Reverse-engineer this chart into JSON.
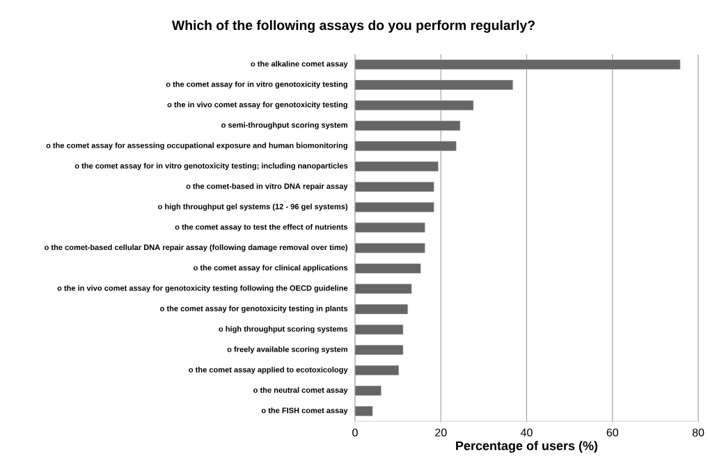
{
  "chart_data": {
    "type": "bar",
    "orientation": "horizontal",
    "title": "Which of the following assays do you perform regularly?",
    "xlabel": "Percentage of users (%)",
    "categories": [
      "o  the alkaline comet assay",
      "o  the comet assay for in vitro genotoxicity testing",
      "o  the in vivo comet assay for genotoxicity testing",
      "o  semi-throughput scoring system",
      "o  the comet assay for assessing occupational exposure and human biomonitoring",
      "o   the comet assay for in vitro genotoxicity testing; including nanoparticles",
      "o  the comet-based in vitro DNA repair assay",
      "o  high throughput gel systems (12 - 96 gel systems)",
      "o  the comet assay to test the effect of nutrients",
      "o  the comet-based cellular DNA repair assay (following damage removal over time)",
      "o  the comet assay for clinical applications",
      "o  the in vivo comet assay for genotoxicity testing following the OECD guideline",
      "o  the comet assay for genotoxicity testing in plants",
      "o  high throughput scoring systems",
      "o  freely available scoring system",
      "o  the comet assay applied to ecotoxicology",
      "o  the neutral comet assay",
      "o  the FISH comet assay"
    ],
    "values": [
      75.8,
      36.8,
      27.6,
      24.5,
      23.6,
      19.4,
      18.4,
      18.4,
      16.3,
      16.3,
      15.3,
      13.2,
      12.3,
      11.2,
      11.2,
      10.2,
      6.1,
      4.1
    ],
    "color": "#666666",
    "xlim": [
      0,
      80
    ],
    "xticks": [
      0,
      20,
      40,
      60,
      80
    ],
    "grid": "x"
  }
}
